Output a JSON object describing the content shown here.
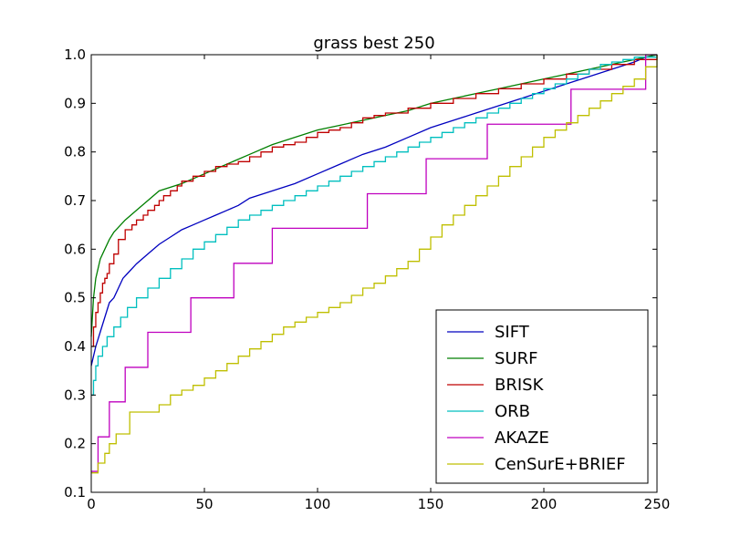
{
  "chart_data": {
    "type": "line",
    "title": "grass best 250",
    "xlabel": "",
    "ylabel": "",
    "xlim": [
      0,
      250
    ],
    "ylim": [
      0.1,
      1.0
    ],
    "x_ticks": [
      0,
      50,
      100,
      150,
      200,
      250
    ],
    "y_ticks": [
      0.1,
      0.2,
      0.3,
      0.4,
      0.5,
      0.6,
      0.7,
      0.8,
      0.9,
      1.0
    ],
    "x_tick_labels": [
      "0",
      "50",
      "100",
      "150",
      "200",
      "250"
    ],
    "y_tick_labels": [
      "0.1",
      "0.2",
      "0.3",
      "0.4",
      "0.5",
      "0.6",
      "0.7",
      "0.8",
      "0.9",
      "1.0"
    ],
    "grid": false,
    "legend_position": "bottom-right",
    "series": [
      {
        "name": "SIFT",
        "color": "#0000bf",
        "step": false,
        "x": [
          0,
          2,
          4,
          6,
          8,
          10,
          12,
          14,
          16,
          20,
          25,
          30,
          35,
          40,
          45,
          50,
          55,
          60,
          65,
          70,
          80,
          90,
          100,
          110,
          120,
          130,
          140,
          150,
          160,
          170,
          180,
          190,
          200,
          210,
          220,
          230,
          240,
          245,
          250
        ],
        "y": [
          0.36,
          0.4,
          0.43,
          0.46,
          0.49,
          0.5,
          0.52,
          0.54,
          0.55,
          0.57,
          0.59,
          0.61,
          0.625,
          0.64,
          0.65,
          0.66,
          0.67,
          0.68,
          0.69,
          0.705,
          0.72,
          0.735,
          0.755,
          0.775,
          0.795,
          0.81,
          0.83,
          0.85,
          0.865,
          0.88,
          0.895,
          0.91,
          0.925,
          0.94,
          0.955,
          0.97,
          0.985,
          0.995,
          1.0
        ]
      },
      {
        "name": "SURF",
        "color": "#007f00",
        "step": false,
        "x": [
          0,
          1,
          2,
          3,
          4,
          6,
          8,
          10,
          12,
          15,
          20,
          25,
          30,
          40,
          50,
          60,
          70,
          80,
          90,
          100,
          110,
          120,
          130,
          140,
          150,
          160,
          170,
          180,
          190,
          200,
          210,
          220,
          230,
          240,
          250
        ],
        "y": [
          0.42,
          0.5,
          0.54,
          0.56,
          0.58,
          0.6,
          0.62,
          0.635,
          0.645,
          0.66,
          0.68,
          0.7,
          0.72,
          0.735,
          0.755,
          0.775,
          0.795,
          0.815,
          0.83,
          0.845,
          0.855,
          0.865,
          0.875,
          0.885,
          0.9,
          0.91,
          0.92,
          0.93,
          0.94,
          0.95,
          0.96,
          0.97,
          0.98,
          0.99,
          1.0
        ]
      },
      {
        "name": "BRISK",
        "color": "#bf0000",
        "step": true,
        "x": [
          0,
          1,
          2,
          3,
          4,
          5,
          6,
          7,
          8,
          10,
          12,
          15,
          18,
          20,
          23,
          25,
          28,
          30,
          32,
          35,
          38,
          40,
          45,
          50,
          55,
          60,
          65,
          70,
          75,
          80,
          85,
          90,
          95,
          100,
          105,
          110,
          115,
          120,
          125,
          130,
          140,
          150,
          160,
          170,
          180,
          190,
          200,
          210,
          220,
          230,
          240,
          250
        ],
        "y": [
          0.4,
          0.44,
          0.47,
          0.49,
          0.51,
          0.53,
          0.54,
          0.55,
          0.57,
          0.59,
          0.62,
          0.64,
          0.65,
          0.66,
          0.67,
          0.68,
          0.69,
          0.7,
          0.71,
          0.72,
          0.73,
          0.74,
          0.75,
          0.76,
          0.77,
          0.775,
          0.78,
          0.79,
          0.8,
          0.81,
          0.815,
          0.82,
          0.83,
          0.84,
          0.845,
          0.85,
          0.86,
          0.87,
          0.875,
          0.88,
          0.89,
          0.9,
          0.91,
          0.92,
          0.93,
          0.94,
          0.95,
          0.96,
          0.97,
          0.98,
          0.99,
          1.0
        ]
      },
      {
        "name": "ORB",
        "color": "#00bfbf",
        "step": true,
        "x": [
          0,
          1,
          2,
          3,
          5,
          7,
          10,
          13,
          16,
          20,
          25,
          30,
          35,
          40,
          45,
          50,
          55,
          60,
          65,
          70,
          75,
          80,
          85,
          90,
          95,
          100,
          105,
          110,
          115,
          120,
          125,
          130,
          135,
          140,
          145,
          150,
          155,
          160,
          165,
          170,
          175,
          180,
          185,
          190,
          195,
          200,
          205,
          210,
          215,
          220,
          225,
          230,
          235,
          240,
          250
        ],
        "y": [
          0.3,
          0.33,
          0.36,
          0.38,
          0.4,
          0.42,
          0.44,
          0.46,
          0.48,
          0.5,
          0.52,
          0.54,
          0.56,
          0.58,
          0.6,
          0.615,
          0.63,
          0.645,
          0.66,
          0.67,
          0.68,
          0.69,
          0.7,
          0.71,
          0.72,
          0.73,
          0.74,
          0.75,
          0.76,
          0.77,
          0.78,
          0.79,
          0.8,
          0.81,
          0.82,
          0.83,
          0.84,
          0.85,
          0.86,
          0.87,
          0.88,
          0.89,
          0.9,
          0.91,
          0.92,
          0.93,
          0.94,
          0.95,
          0.96,
          0.97,
          0.98,
          0.985,
          0.99,
          0.995,
          1.0
        ]
      },
      {
        "name": "AKAZE",
        "color": "#bf00bf",
        "step": true,
        "x": [
          0,
          3,
          8,
          15,
          25,
          44,
          63,
          80,
          122,
          148,
          175,
          212,
          242,
          245,
          250
        ],
        "y": [
          0.143,
          0.214,
          0.286,
          0.357,
          0.429,
          0.5,
          0.571,
          0.643,
          0.714,
          0.786,
          0.857,
          0.929,
          0.929,
          1.0,
          1.0
        ]
      },
      {
        "name": "CenSurE+BRIEF",
        "color": "#bfbf00",
        "step": true,
        "x": [
          0,
          3,
          6,
          8,
          11,
          17,
          20,
          25,
          30,
          35,
          40,
          45,
          50,
          55,
          60,
          65,
          70,
          75,
          80,
          85,
          90,
          95,
          100,
          105,
          110,
          115,
          120,
          125,
          130,
          135,
          140,
          145,
          150,
          155,
          160,
          165,
          170,
          175,
          180,
          185,
          190,
          195,
          200,
          205,
          210,
          215,
          220,
          225,
          230,
          235,
          240,
          245,
          250
        ],
        "y": [
          0.14,
          0.16,
          0.18,
          0.2,
          0.22,
          0.265,
          0.265,
          0.265,
          0.28,
          0.3,
          0.31,
          0.32,
          0.335,
          0.35,
          0.365,
          0.38,
          0.395,
          0.41,
          0.425,
          0.44,
          0.45,
          0.46,
          0.47,
          0.48,
          0.49,
          0.505,
          0.52,
          0.53,
          0.545,
          0.56,
          0.575,
          0.6,
          0.625,
          0.65,
          0.67,
          0.69,
          0.71,
          0.73,
          0.75,
          0.77,
          0.79,
          0.81,
          0.83,
          0.845,
          0.86,
          0.875,
          0.89,
          0.905,
          0.92,
          0.935,
          0.95,
          0.975,
          1.0
        ]
      }
    ]
  }
}
